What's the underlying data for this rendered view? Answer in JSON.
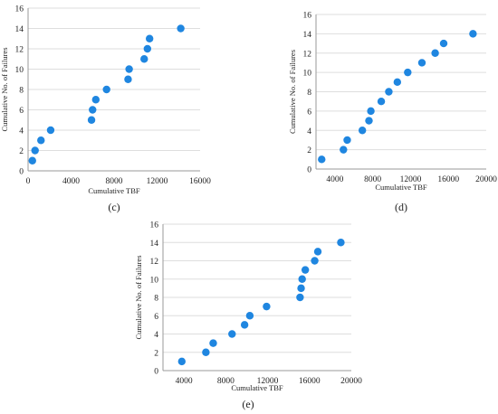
{
  "chart_data": [
    {
      "type": "scatter",
      "panel_label": "(c)",
      "xlabel": "Cumulative TBF",
      "ylabel": "Cumulative No. of Failures",
      "xlim": [
        0,
        16000
      ],
      "ylim": [
        0,
        16
      ],
      "xticks": [
        0,
        4000,
        8000,
        12000,
        16000
      ],
      "yticks": [
        0,
        2,
        4,
        6,
        8,
        10,
        12,
        14,
        16
      ],
      "grid": "horizontal",
      "marker_color": "#1f86e0",
      "points": [
        {
          "x": 400,
          "y": 1
        },
        {
          "x": 650,
          "y": 2
        },
        {
          "x": 1200,
          "y": 3
        },
        {
          "x": 2100,
          "y": 4
        },
        {
          "x": 5900,
          "y": 5
        },
        {
          "x": 6000,
          "y": 6
        },
        {
          "x": 6300,
          "y": 7
        },
        {
          "x": 7300,
          "y": 8
        },
        {
          "x": 9300,
          "y": 9
        },
        {
          "x": 9400,
          "y": 10
        },
        {
          "x": 10800,
          "y": 11
        },
        {
          "x": 11100,
          "y": 12
        },
        {
          "x": 11300,
          "y": 13
        },
        {
          "x": 14200,
          "y": 14
        }
      ]
    },
    {
      "type": "scatter",
      "panel_label": "(d)",
      "xlabel": "Cumulative TBF",
      "ylabel": "Cumulative No. of Failures",
      "xlim": [
        2000,
        20000
      ],
      "ylim": [
        0,
        16
      ],
      "xticks": [
        4000,
        8000,
        12000,
        16000,
        20000
      ],
      "yticks": [
        0,
        2,
        4,
        6,
        8,
        10,
        12,
        14,
        16
      ],
      "grid": "horizontal",
      "marker_color": "#1f86e0",
      "points": [
        {
          "x": 2600,
          "y": 1
        },
        {
          "x": 4900,
          "y": 2
        },
        {
          "x": 5300,
          "y": 3
        },
        {
          "x": 6900,
          "y": 4
        },
        {
          "x": 7600,
          "y": 5
        },
        {
          "x": 7800,
          "y": 6
        },
        {
          "x": 8900,
          "y": 7
        },
        {
          "x": 9700,
          "y": 8
        },
        {
          "x": 10600,
          "y": 9
        },
        {
          "x": 11700,
          "y": 10
        },
        {
          "x": 13200,
          "y": 11
        },
        {
          "x": 14600,
          "y": 12
        },
        {
          "x": 15500,
          "y": 13
        },
        {
          "x": 18600,
          "y": 14
        }
      ]
    },
    {
      "type": "scatter",
      "panel_label": "(e)",
      "xlabel": "Cumulative TBF",
      "ylabel": "Cumulative No. of Failures",
      "xlim": [
        2000,
        20000
      ],
      "ylim": [
        0,
        16
      ],
      "xticks": [
        4000,
        8000,
        12000,
        16000,
        20000
      ],
      "yticks": [
        0,
        2,
        4,
        6,
        8,
        10,
        12,
        14,
        16
      ],
      "grid": "horizontal",
      "marker_color": "#1f86e0",
      "points": [
        {
          "x": 3800,
          "y": 1
        },
        {
          "x": 6100,
          "y": 2
        },
        {
          "x": 6800,
          "y": 3
        },
        {
          "x": 8600,
          "y": 4
        },
        {
          "x": 9800,
          "y": 5
        },
        {
          "x": 10300,
          "y": 6
        },
        {
          "x": 11900,
          "y": 7
        },
        {
          "x": 15100,
          "y": 8
        },
        {
          "x": 15200,
          "y": 9
        },
        {
          "x": 15300,
          "y": 10
        },
        {
          "x": 15600,
          "y": 11
        },
        {
          "x": 16500,
          "y": 12
        },
        {
          "x": 16800,
          "y": 13
        },
        {
          "x": 19000,
          "y": 14
        }
      ]
    }
  ]
}
